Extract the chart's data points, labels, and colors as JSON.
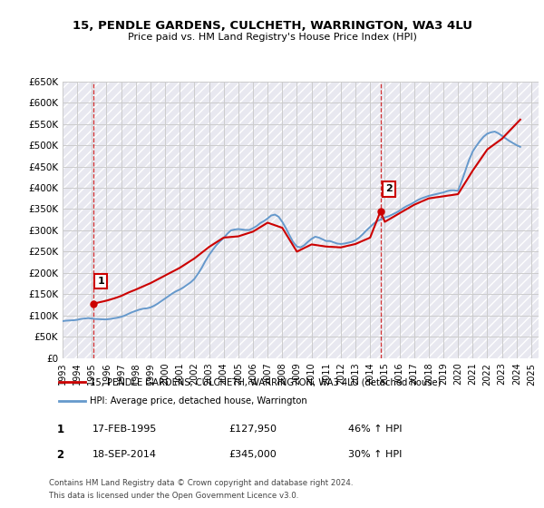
{
  "title": "15, PENDLE GARDENS, CULCHETH, WARRINGTON, WA3 4LU",
  "subtitle": "Price paid vs. HM Land Registry's House Price Index (HPI)",
  "legend_line1": "15, PENDLE GARDENS, CULCHETH, WARRINGTON, WA3 4LU (detached house)",
  "legend_line2": "HPI: Average price, detached house, Warrington",
  "footnote_line1": "Contains HM Land Registry data © Crown copyright and database right 2024.",
  "footnote_line2": "This data is licensed under the Open Government Licence v3.0.",
  "transaction1_label": "1",
  "transaction1_date": "17-FEB-1995",
  "transaction1_price": "£127,950",
  "transaction1_hpi": "46% ↑ HPI",
  "transaction2_label": "2",
  "transaction2_date": "18-SEP-2014",
  "transaction2_price": "£345,000",
  "transaction2_hpi": "30% ↑ HPI",
  "property_color": "#cc0000",
  "hpi_color": "#6699cc",
  "grid_color": "#cccccc",
  "ylim_min": 0,
  "ylim_max": 650000,
  "yticks": [
    0,
    50000,
    100000,
    150000,
    200000,
    250000,
    300000,
    350000,
    400000,
    450000,
    500000,
    550000,
    600000,
    650000
  ],
  "ytick_labels": [
    "£0",
    "£50K",
    "£100K",
    "£150K",
    "£200K",
    "£250K",
    "£300K",
    "£350K",
    "£400K",
    "£450K",
    "£500K",
    "£550K",
    "£600K",
    "£650K"
  ],
  "hpi_dates": [
    1993.0,
    1993.25,
    1993.5,
    1993.75,
    1994.0,
    1994.25,
    1994.5,
    1994.75,
    1995.0,
    1995.25,
    1995.5,
    1995.75,
    1996.0,
    1996.25,
    1996.5,
    1996.75,
    1997.0,
    1997.25,
    1997.5,
    1997.75,
    1998.0,
    1998.25,
    1998.5,
    1998.75,
    1999.0,
    1999.25,
    1999.5,
    1999.75,
    2000.0,
    2000.25,
    2000.5,
    2000.75,
    2001.0,
    2001.25,
    2001.5,
    2001.75,
    2002.0,
    2002.25,
    2002.5,
    2002.75,
    2003.0,
    2003.25,
    2003.5,
    2003.75,
    2004.0,
    2004.25,
    2004.5,
    2004.75,
    2005.0,
    2005.25,
    2005.5,
    2005.75,
    2006.0,
    2006.25,
    2006.5,
    2006.75,
    2007.0,
    2007.25,
    2007.5,
    2007.75,
    2008.0,
    2008.25,
    2008.5,
    2008.75,
    2009.0,
    2009.25,
    2009.5,
    2009.75,
    2010.0,
    2010.25,
    2010.5,
    2010.75,
    2011.0,
    2011.25,
    2011.5,
    2011.75,
    2012.0,
    2012.25,
    2012.5,
    2012.75,
    2013.0,
    2013.25,
    2013.5,
    2013.75,
    2014.0,
    2014.25,
    2014.5,
    2014.75,
    2015.0,
    2015.25,
    2015.5,
    2015.75,
    2016.0,
    2016.25,
    2016.5,
    2016.75,
    2017.0,
    2017.25,
    2017.5,
    2017.75,
    2018.0,
    2018.25,
    2018.5,
    2018.75,
    2019.0,
    2019.25,
    2019.5,
    2019.75,
    2020.0,
    2020.25,
    2020.5,
    2020.75,
    2021.0,
    2021.25,
    2021.5,
    2021.75,
    2022.0,
    2022.25,
    2022.5,
    2022.75,
    2023.0,
    2023.25,
    2023.5,
    2023.75,
    2024.0,
    2024.25
  ],
  "hpi_values": [
    87000,
    88000,
    88500,
    89000,
    90000,
    92000,
    93000,
    94000,
    93000,
    92000,
    91500,
    91000,
    91000,
    92000,
    93500,
    95000,
    97000,
    100000,
    104000,
    108000,
    111000,
    114000,
    116000,
    117000,
    119000,
    123000,
    128000,
    134000,
    140000,
    146000,
    152000,
    157000,
    161000,
    166000,
    172000,
    178000,
    186000,
    198000,
    212000,
    228000,
    242000,
    254000,
    265000,
    274000,
    282000,
    292000,
    300000,
    302000,
    303000,
    302000,
    301000,
    301000,
    305000,
    310000,
    317000,
    322000,
    328000,
    335000,
    337000,
    332000,
    320000,
    305000,
    288000,
    272000,
    262000,
    260000,
    265000,
    273000,
    280000,
    285000,
    283000,
    279000,
    275000,
    275000,
    272000,
    269000,
    268000,
    269000,
    271000,
    273000,
    277000,
    283000,
    291000,
    300000,
    308000,
    316000,
    322000,
    326000,
    330000,
    333000,
    337000,
    341000,
    346000,
    352000,
    357000,
    361000,
    366000,
    371000,
    375000,
    378000,
    381000,
    383000,
    385000,
    387000,
    389000,
    392000,
    394000,
    394000,
    393000,
    415000,
    440000,
    465000,
    485000,
    498000,
    510000,
    520000,
    527000,
    530000,
    532000,
    528000,
    522000,
    516000,
    510000,
    505000,
    500000,
    496000
  ],
  "prop_dates": [
    1995.12,
    1995.5,
    1996.0,
    1996.5,
    1997.0,
    1997.5,
    1998.0,
    1999.0,
    2000.0,
    2001.0,
    2002.0,
    2003.0,
    2004.0,
    2005.0,
    2006.0,
    2007.0,
    2008.0,
    2009.0,
    2010.0,
    2011.0,
    2012.0,
    2013.0,
    2014.0,
    2014.71,
    2015.0,
    2016.0,
    2017.0,
    2018.0,
    2019.0,
    2020.0,
    2021.0,
    2022.0,
    2023.0,
    2024.25
  ],
  "prop_values": [
    127950,
    131000,
    135000,
    140000,
    146000,
    154000,
    161000,
    176000,
    194000,
    212000,
    234000,
    261000,
    283000,
    286000,
    297000,
    318000,
    306000,
    250000,
    267000,
    262000,
    260000,
    268000,
    283000,
    345000,
    320000,
    340000,
    360000,
    375000,
    380000,
    385000,
    440000,
    490000,
    515000,
    560000
  ],
  "transaction_dates": [
    1995.12,
    2014.71
  ],
  "transaction_values": [
    127950,
    345000
  ],
  "vline1_x": 1995.12,
  "vline2_x": 2014.71,
  "xmin": 1993.0,
  "xmax": 2025.5,
  "xtick_years": [
    1993,
    1994,
    1995,
    1996,
    1997,
    1998,
    1999,
    2000,
    2001,
    2002,
    2003,
    2004,
    2005,
    2006,
    2007,
    2008,
    2009,
    2010,
    2011,
    2012,
    2013,
    2014,
    2015,
    2016,
    2017,
    2018,
    2019,
    2020,
    2021,
    2022,
    2023,
    2024,
    2025
  ]
}
